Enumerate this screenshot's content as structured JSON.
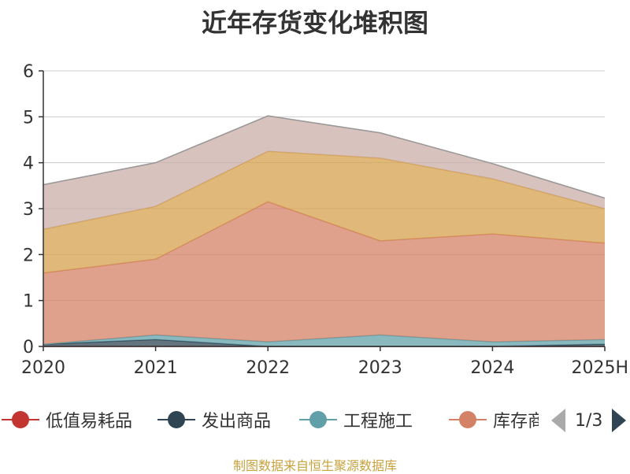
{
  "chart_data": {
    "type": "area",
    "stacked": true,
    "title": "近年存货变化堆积图",
    "xlabel": "",
    "ylabel": "",
    "categories": [
      "2020",
      "2021",
      "2022",
      "2023",
      "2024",
      "2025H"
    ],
    "ylim": [
      0,
      6
    ],
    "yticks": [
      0,
      1,
      2,
      3,
      4,
      5,
      6
    ],
    "grid": true,
    "series": [
      {
        "name": "低值易耗品",
        "values": [
          0.0,
          0.0,
          0.0,
          0.0,
          0.0,
          0.0
        ],
        "color": "#c23531"
      },
      {
        "name": "发出商品",
        "values": [
          0.05,
          0.15,
          0.0,
          0.0,
          0.0,
          0.05
        ],
        "color": "#2f4554"
      },
      {
        "name": "工程施工",
        "values": [
          0.0,
          0.1,
          0.1,
          0.25,
          0.1,
          0.1
        ],
        "color": "#61a0a8"
      },
      {
        "name": "库存商品",
        "values": [
          1.55,
          1.65,
          3.05,
          2.05,
          2.35,
          2.1
        ],
        "color": "#d48265"
      },
      {
        "name": "",
        "values": [
          0.95,
          1.15,
          1.1,
          1.8,
          1.2,
          0.75
        ],
        "color": "#d5a14e"
      },
      {
        "name": "",
        "values": [
          0.97,
          0.95,
          0.77,
          0.55,
          0.33,
          0.23
        ],
        "color": "#c9ada8"
      }
    ]
  },
  "legend": {
    "items": [
      {
        "label": "低值易耗品",
        "color": "#c23531"
      },
      {
        "label": "发出商品",
        "color": "#2f4554"
      },
      {
        "label": "工程施工",
        "color": "#61a0a8"
      },
      {
        "label": "库存商品",
        "color": "#d48265"
      }
    ],
    "page_text": "1/3"
  },
  "source_note": "制图数据来自恒生聚源数据库"
}
